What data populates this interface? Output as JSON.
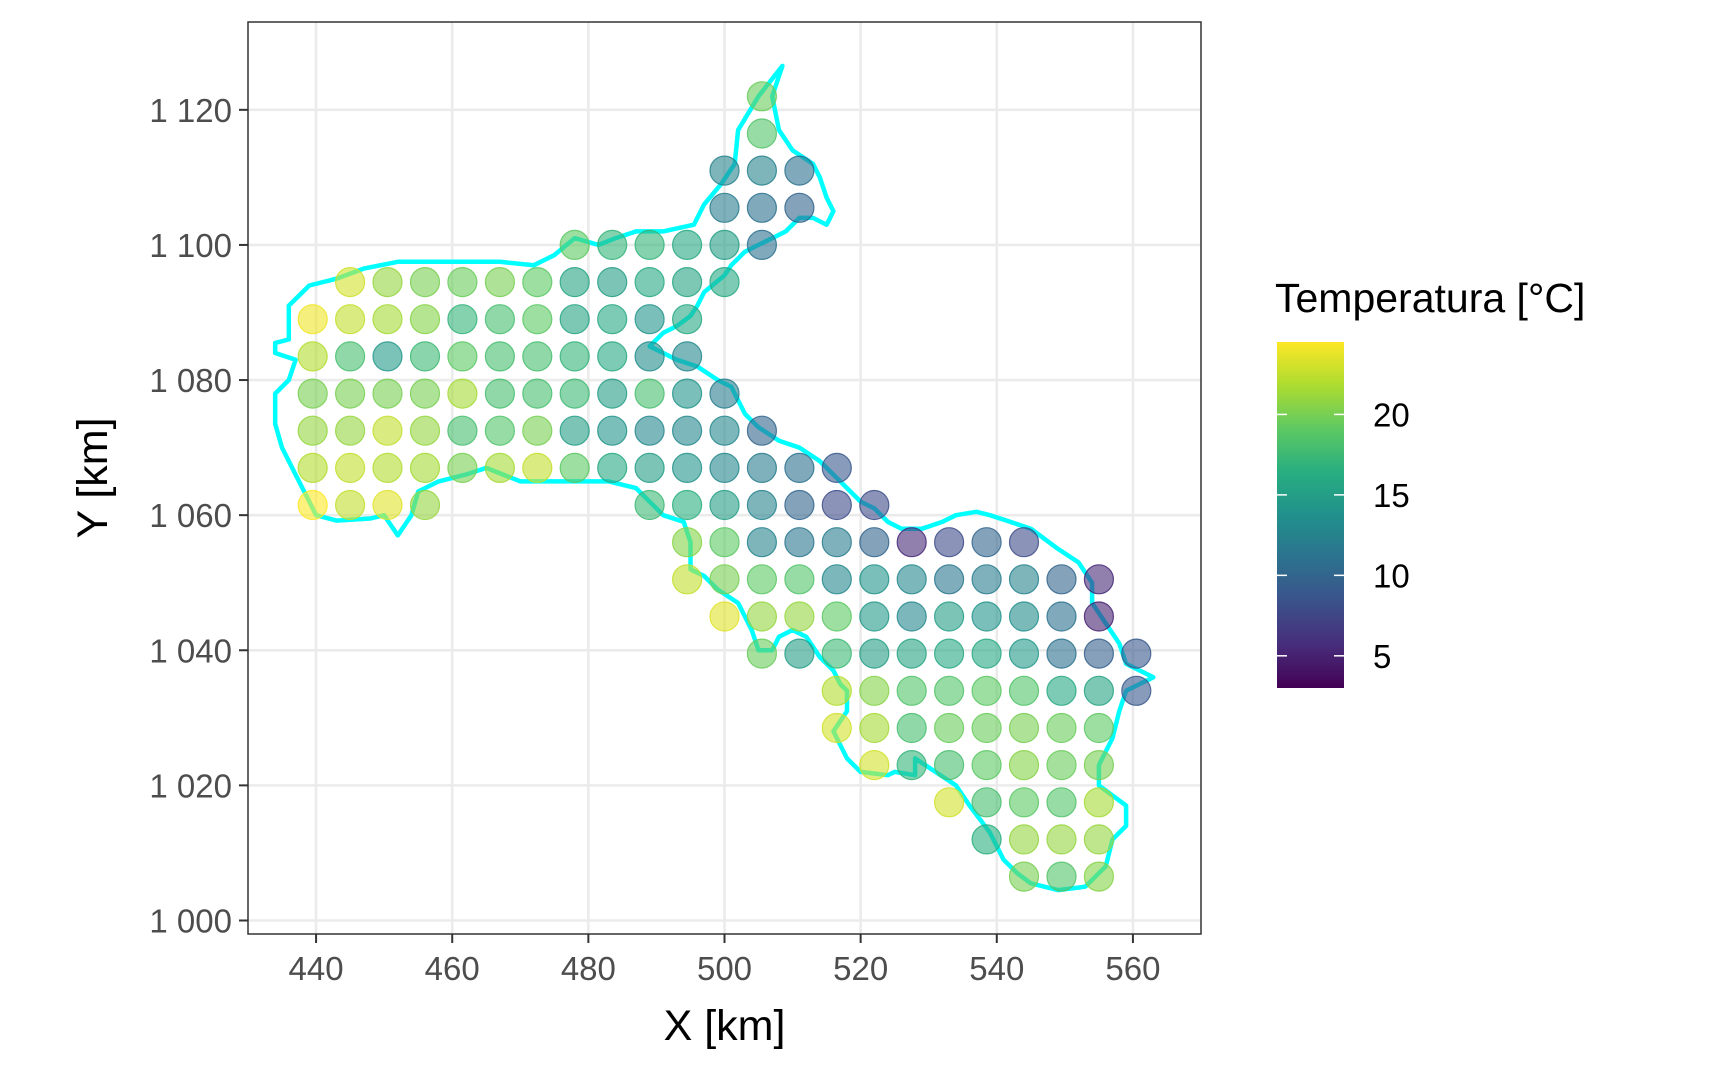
{
  "chart_data": {
    "type": "scatter",
    "xlabel": "X [km]",
    "ylabel": "Y [km]",
    "xlim": [
      430,
      570
    ],
    "ylim": [
      998,
      1133
    ],
    "x_ticks": [
      440,
      460,
      480,
      500,
      520,
      540,
      560
    ],
    "y_ticks": [
      1000,
      1020,
      1040,
      1060,
      1080,
      1100,
      1120
    ],
    "x_tick_labels": [
      "440",
      "460",
      "480",
      "500",
      "520",
      "540",
      "560"
    ],
    "y_tick_labels": [
      "1 000",
      "1 020",
      "1 040",
      "1 060",
      "1 080",
      "1 100",
      "1 120"
    ],
    "grid": true,
    "legend": {
      "title": "Temperatura [°C]",
      "placement": "right",
      "range": [
        3,
        24.5
      ],
      "ticks": [
        5,
        10,
        15,
        20
      ],
      "tick_labels": [
        "5",
        "10",
        "15",
        "20"
      ],
      "palette": "viridis"
    },
    "outline_color": "#00FFFF",
    "point_opacity": 0.6,
    "grid_x": [
      439.5,
      445,
      450.5,
      456,
      461.5,
      467,
      472.5,
      478,
      483.5,
      489,
      494.5,
      500,
      505.5,
      511,
      516.5,
      522,
      527.5,
      533,
      538.5,
      544,
      549.5,
      555,
      560.5
    ],
    "grid_y": [
      1122,
      1116.5,
      1111,
      1105.5,
      1100,
      1094.5,
      1089,
      1083.5,
      1078,
      1072.5,
      1067,
      1061.5,
      1056,
      1050.5,
      1045,
      1039.5,
      1034,
      1028.5,
      1023,
      1017.5,
      1012,
      1006.5
    ],
    "points": [
      {
        "i": 12,
        "j": 0,
        "t": 19.5
      },
      {
        "i": 12,
        "j": 1,
        "t": 18.5
      },
      {
        "i": 11,
        "j": 2,
        "t": 12.5
      },
      {
        "i": 12,
        "j": 2,
        "t": 12.5
      },
      {
        "i": 13,
        "j": 2,
        "t": 11
      },
      {
        "i": 11,
        "j": 3,
        "t": 12
      },
      {
        "i": 12,
        "j": 3,
        "t": 11
      },
      {
        "i": 13,
        "j": 3,
        "t": 10
      },
      {
        "i": 7,
        "j": 4,
        "t": 19
      },
      {
        "i": 8,
        "j": 4,
        "t": 17
      },
      {
        "i": 9,
        "j": 4,
        "t": 17
      },
      {
        "i": 10,
        "j": 4,
        "t": 16
      },
      {
        "i": 11,
        "j": 4,
        "t": 15
      },
      {
        "i": 12,
        "j": 4,
        "t": 11
      },
      {
        "i": 1,
        "j": 5,
        "t": 23
      },
      {
        "i": 2,
        "j": 5,
        "t": 21
      },
      {
        "i": 3,
        "j": 5,
        "t": 20
      },
      {
        "i": 4,
        "j": 5,
        "t": 19.5
      },
      {
        "i": 5,
        "j": 5,
        "t": 20
      },
      {
        "i": 6,
        "j": 5,
        "t": 19
      },
      {
        "i": 7,
        "j": 5,
        "t": 15.5
      },
      {
        "i": 8,
        "j": 5,
        "t": 15
      },
      {
        "i": 9,
        "j": 5,
        "t": 16
      },
      {
        "i": 10,
        "j": 5,
        "t": 15.5
      },
      {
        "i": 11,
        "j": 5,
        "t": 16
      },
      {
        "i": 0,
        "j": 6,
        "t": 24
      },
      {
        "i": 1,
        "j": 6,
        "t": 22.5
      },
      {
        "i": 2,
        "j": 6,
        "t": 21.5
      },
      {
        "i": 3,
        "j": 6,
        "t": 20.5
      },
      {
        "i": 4,
        "j": 6,
        "t": 17
      },
      {
        "i": 5,
        "j": 6,
        "t": 18
      },
      {
        "i": 6,
        "j": 6,
        "t": 19
      },
      {
        "i": 7,
        "j": 6,
        "t": 15.5
      },
      {
        "i": 8,
        "j": 6,
        "t": 16
      },
      {
        "i": 9,
        "j": 6,
        "t": 14
      },
      {
        "i": 10,
        "j": 6,
        "t": 16
      },
      {
        "i": 0,
        "j": 7,
        "t": 22
      },
      {
        "i": 1,
        "j": 7,
        "t": 18
      },
      {
        "i": 2,
        "j": 7,
        "t": 14.5
      },
      {
        "i": 3,
        "j": 7,
        "t": 17.5
      },
      {
        "i": 4,
        "j": 7,
        "t": 19
      },
      {
        "i": 5,
        "j": 7,
        "t": 18
      },
      {
        "i": 6,
        "j": 7,
        "t": 18
      },
      {
        "i": 7,
        "j": 7,
        "t": 17
      },
      {
        "i": 8,
        "j": 7,
        "t": 16
      },
      {
        "i": 9,
        "j": 7,
        "t": 13.5
      },
      {
        "i": 10,
        "j": 7,
        "t": 13
      },
      {
        "i": 0,
        "j": 8,
        "t": 20
      },
      {
        "i": 1,
        "j": 8,
        "t": 20
      },
      {
        "i": 2,
        "j": 8,
        "t": 20
      },
      {
        "i": 3,
        "j": 8,
        "t": 20
      },
      {
        "i": 4,
        "j": 8,
        "t": 21.5
      },
      {
        "i": 5,
        "j": 8,
        "t": 18
      },
      {
        "i": 6,
        "j": 8,
        "t": 18
      },
      {
        "i": 7,
        "j": 8,
        "t": 17.5
      },
      {
        "i": 8,
        "j": 8,
        "t": 15
      },
      {
        "i": 9,
        "j": 8,
        "t": 18
      },
      {
        "i": 10,
        "j": 8,
        "t": 14
      },
      {
        "i": 11,
        "j": 8,
        "t": 12
      },
      {
        "i": 0,
        "j": 9,
        "t": 21
      },
      {
        "i": 1,
        "j": 9,
        "t": 21
      },
      {
        "i": 2,
        "j": 9,
        "t": 22.5
      },
      {
        "i": 3,
        "j": 9,
        "t": 21
      },
      {
        "i": 4,
        "j": 9,
        "t": 18
      },
      {
        "i": 5,
        "j": 9,
        "t": 18.5
      },
      {
        "i": 6,
        "j": 9,
        "t": 20
      },
      {
        "i": 7,
        "j": 9,
        "t": 15
      },
      {
        "i": 8,
        "j": 9,
        "t": 14
      },
      {
        "i": 9,
        "j": 9,
        "t": 13
      },
      {
        "i": 10,
        "j": 9,
        "t": 13
      },
      {
        "i": 11,
        "j": 9,
        "t": 13
      },
      {
        "i": 12,
        "j": 9,
        "t": 10
      },
      {
        "i": 0,
        "j": 10,
        "t": 22
      },
      {
        "i": 1,
        "j": 10,
        "t": 22.5
      },
      {
        "i": 2,
        "j": 10,
        "t": 22
      },
      {
        "i": 3,
        "j": 10,
        "t": 21.5
      },
      {
        "i": 4,
        "j": 10,
        "t": 20
      },
      {
        "i": 5,
        "j": 10,
        "t": 21.5
      },
      {
        "i": 6,
        "j": 10,
        "t": 22.5
      },
      {
        "i": 7,
        "j": 10,
        "t": 19
      },
      {
        "i": 8,
        "j": 10,
        "t": 16
      },
      {
        "i": 9,
        "j": 10,
        "t": 15
      },
      {
        "i": 10,
        "j": 10,
        "t": 14
      },
      {
        "i": 11,
        "j": 10,
        "t": 13
      },
      {
        "i": 12,
        "j": 10,
        "t": 12
      },
      {
        "i": 13,
        "j": 10,
        "t": 11
      },
      {
        "i": 14,
        "j": 10,
        "t": 9
      },
      {
        "i": 0,
        "j": 11,
        "t": 24.5
      },
      {
        "i": 1,
        "j": 11,
        "t": 22.5
      },
      {
        "i": 2,
        "j": 11,
        "t": 23.5
      },
      {
        "i": 3,
        "j": 11,
        "t": 21
      },
      {
        "i": 9,
        "j": 11,
        "t": 17.5
      },
      {
        "i": 10,
        "j": 11,
        "t": 16.5
      },
      {
        "i": 11,
        "j": 11,
        "t": 15
      },
      {
        "i": 12,
        "j": 11,
        "t": 12.5
      },
      {
        "i": 13,
        "j": 11,
        "t": 10
      },
      {
        "i": 14,
        "j": 11,
        "t": 8
      },
      {
        "i": 15,
        "j": 11,
        "t": 8
      },
      {
        "i": 10,
        "j": 12,
        "t": 20.5
      },
      {
        "i": 11,
        "j": 12,
        "t": 19
      },
      {
        "i": 12,
        "j": 12,
        "t": 12.5
      },
      {
        "i": 13,
        "j": 12,
        "t": 11.5
      },
      {
        "i": 14,
        "j": 12,
        "t": 12
      },
      {
        "i": 15,
        "j": 12,
        "t": 10
      },
      {
        "i": 16,
        "j": 12,
        "t": 5.5
      },
      {
        "i": 17,
        "j": 12,
        "t": 8
      },
      {
        "i": 18,
        "j": 12,
        "t": 10
      },
      {
        "i": 19,
        "j": 12,
        "t": 8
      },
      {
        "i": 10,
        "j": 13,
        "t": 22.5
      },
      {
        "i": 11,
        "j": 13,
        "t": 20
      },
      {
        "i": 12,
        "j": 13,
        "t": 19
      },
      {
        "i": 13,
        "j": 13,
        "t": 18.5
      },
      {
        "i": 14,
        "j": 13,
        "t": 13
      },
      {
        "i": 15,
        "j": 13,
        "t": 14
      },
      {
        "i": 16,
        "j": 13,
        "t": 13
      },
      {
        "i": 17,
        "j": 13,
        "t": 11.5
      },
      {
        "i": 18,
        "j": 13,
        "t": 12
      },
      {
        "i": 19,
        "j": 13,
        "t": 12.5
      },
      {
        "i": 20,
        "j": 13,
        "t": 10
      },
      {
        "i": 21,
        "j": 13,
        "t": 5.5
      },
      {
        "i": 11,
        "j": 14,
        "t": 23.5
      },
      {
        "i": 12,
        "j": 14,
        "t": 21
      },
      {
        "i": 13,
        "j": 14,
        "t": 21
      },
      {
        "i": 14,
        "j": 14,
        "t": 19
      },
      {
        "i": 15,
        "j": 14,
        "t": 14.5
      },
      {
        "i": 16,
        "j": 14,
        "t": 13
      },
      {
        "i": 17,
        "j": 14,
        "t": 15
      },
      {
        "i": 18,
        "j": 14,
        "t": 14
      },
      {
        "i": 19,
        "j": 14,
        "t": 13.5
      },
      {
        "i": 20,
        "j": 14,
        "t": 11
      },
      {
        "i": 21,
        "j": 14,
        "t": 5
      },
      {
        "i": 12,
        "j": 15,
        "t": 19.5
      },
      {
        "i": 13,
        "j": 15,
        "t": 15
      },
      {
        "i": 14,
        "j": 15,
        "t": 17.5
      },
      {
        "i": 15,
        "j": 15,
        "t": 15
      },
      {
        "i": 16,
        "j": 15,
        "t": 15.5
      },
      {
        "i": 17,
        "j": 15,
        "t": 16
      },
      {
        "i": 18,
        "j": 15,
        "t": 16
      },
      {
        "i": 19,
        "j": 15,
        "t": 14.5
      },
      {
        "i": 20,
        "j": 15,
        "t": 11
      },
      {
        "i": 21,
        "j": 15,
        "t": 9.5
      },
      {
        "i": 22,
        "j": 15,
        "t": 9
      },
      {
        "i": 14,
        "j": 16,
        "t": 22
      },
      {
        "i": 15,
        "j": 16,
        "t": 20.5
      },
      {
        "i": 16,
        "j": 16,
        "t": 18.5
      },
      {
        "i": 17,
        "j": 16,
        "t": 18.5
      },
      {
        "i": 18,
        "j": 16,
        "t": 19
      },
      {
        "i": 19,
        "j": 16,
        "t": 18.5
      },
      {
        "i": 20,
        "j": 16,
        "t": 16
      },
      {
        "i": 21,
        "j": 16,
        "t": 15.5
      },
      {
        "i": 22,
        "j": 16,
        "t": 9
      },
      {
        "i": 14,
        "j": 17,
        "t": 23
      },
      {
        "i": 15,
        "j": 17,
        "t": 21.5
      },
      {
        "i": 16,
        "j": 17,
        "t": 18
      },
      {
        "i": 17,
        "j": 17,
        "t": 19.5
      },
      {
        "i": 18,
        "j": 17,
        "t": 19.5
      },
      {
        "i": 19,
        "j": 17,
        "t": 20
      },
      {
        "i": 20,
        "j": 17,
        "t": 19.5
      },
      {
        "i": 21,
        "j": 17,
        "t": 19
      },
      {
        "i": 15,
        "j": 18,
        "t": 23
      },
      {
        "i": 16,
        "j": 18,
        "t": 17
      },
      {
        "i": 17,
        "j": 18,
        "t": 18
      },
      {
        "i": 18,
        "j": 18,
        "t": 19
      },
      {
        "i": 19,
        "j": 18,
        "t": 20.5
      },
      {
        "i": 20,
        "j": 18,
        "t": 19.5
      },
      {
        "i": 21,
        "j": 18,
        "t": 20
      },
      {
        "i": 17,
        "j": 19,
        "t": 23
      },
      {
        "i": 18,
        "j": 19,
        "t": 18
      },
      {
        "i": 19,
        "j": 19,
        "t": 19
      },
      {
        "i": 20,
        "j": 19,
        "t": 18.5
      },
      {
        "i": 21,
        "j": 19,
        "t": 21.5
      },
      {
        "i": 18,
        "j": 20,
        "t": 16.5
      },
      {
        "i": 19,
        "j": 20,
        "t": 21
      },
      {
        "i": 20,
        "j": 20,
        "t": 21
      },
      {
        "i": 21,
        "j": 20,
        "t": 21
      },
      {
        "i": 19,
        "j": 21,
        "t": 20
      },
      {
        "i": 20,
        "j": 21,
        "t": 18.5
      },
      {
        "i": 21,
        "j": 21,
        "t": 20.5
      }
    ],
    "outline": [
      [
        508.5,
        1126.5
      ],
      [
        505,
        1122
      ],
      [
        502,
        1117
      ],
      [
        501.5,
        1112
      ],
      [
        499.5,
        1109
      ],
      [
        497,
        1106
      ],
      [
        495.5,
        1103
      ],
      [
        491,
        1102
      ],
      [
        487,
        1102
      ],
      [
        484,
        1101
      ],
      [
        481.5,
        1100
      ],
      [
        478,
        1101
      ],
      [
        475,
        1098.5
      ],
      [
        472,
        1097
      ],
      [
        467,
        1097.5
      ],
      [
        462,
        1097.5
      ],
      [
        457,
        1097.5
      ],
      [
        452,
        1097.5
      ],
      [
        447,
        1096.5
      ],
      [
        443,
        1095
      ],
      [
        439,
        1094
      ],
      [
        436,
        1091
      ],
      [
        436,
        1086
      ],
      [
        434,
        1085.5
      ],
      [
        434,
        1084
      ],
      [
        437,
        1083
      ],
      [
        436,
        1080
      ],
      [
        434,
        1078
      ],
      [
        434,
        1073.5
      ],
      [
        435,
        1070
      ],
      [
        437,
        1066
      ],
      [
        439,
        1062
      ],
      [
        440,
        1060
      ],
      [
        443,
        1059.2
      ],
      [
        448,
        1059.5
      ],
      [
        450,
        1060
      ],
      [
        452,
        1057
      ],
      [
        454,
        1060
      ],
      [
        455,
        1063.5
      ],
      [
        458,
        1065
      ],
      [
        462,
        1066
      ],
      [
        465,
        1067
      ],
      [
        470,
        1065
      ],
      [
        474,
        1065
      ],
      [
        478,
        1065
      ],
      [
        483,
        1065
      ],
      [
        487,
        1064
      ],
      [
        489,
        1062
      ],
      [
        491,
        1060
      ],
      [
        494,
        1059
      ],
      [
        495,
        1056
      ],
      [
        495,
        1052
      ],
      [
        497,
        1051
      ],
      [
        499,
        1049
      ],
      [
        502,
        1047
      ],
      [
        504,
        1043
      ],
      [
        505,
        1040
      ],
      [
        507,
        1040
      ],
      [
        508,
        1042
      ],
      [
        510,
        1043
      ],
      [
        512,
        1042
      ],
      [
        514,
        1039
      ],
      [
        516,
        1037
      ],
      [
        517,
        1035
      ],
      [
        518,
        1034
      ],
      [
        518,
        1031
      ],
      [
        516,
        1028
      ],
      [
        518,
        1024
      ],
      [
        520,
        1022
      ],
      [
        524,
        1021.5
      ],
      [
        525,
        1022
      ],
      [
        528,
        1021.5
      ],
      [
        528,
        1024
      ],
      [
        531,
        1022
      ],
      [
        534,
        1020
      ],
      [
        536,
        1017
      ],
      [
        539,
        1013
      ],
      [
        541,
        1009
      ],
      [
        543,
        1007
      ],
      [
        545,
        1005.5
      ],
      [
        549,
        1004.5
      ],
      [
        553,
        1005
      ],
      [
        556,
        1008
      ],
      [
        557,
        1012
      ],
      [
        559,
        1014
      ],
      [
        559,
        1017
      ],
      [
        555,
        1020
      ],
      [
        555,
        1023
      ],
      [
        557,
        1027
      ],
      [
        558,
        1031
      ],
      [
        559,
        1034
      ],
      [
        561,
        1035
      ],
      [
        563,
        1036
      ],
      [
        561,
        1037
      ],
      [
        559,
        1038
      ],
      [
        558,
        1041
      ],
      [
        556,
        1044
      ],
      [
        554,
        1047
      ],
      [
        554,
        1050
      ],
      [
        552,
        1053
      ],
      [
        549,
        1055
      ],
      [
        545,
        1058
      ],
      [
        542,
        1059
      ],
      [
        539,
        1060
      ],
      [
        537,
        1060.5
      ],
      [
        534,
        1060
      ],
      [
        532,
        1059
      ],
      [
        529,
        1058
      ],
      [
        526,
        1058
      ],
      [
        524,
        1059
      ],
      [
        522,
        1061
      ],
      [
        520,
        1062
      ],
      [
        518,
        1064
      ],
      [
        516,
        1066
      ],
      [
        514,
        1068
      ],
      [
        511,
        1070
      ],
      [
        508,
        1071
      ],
      [
        505,
        1073
      ],
      [
        503,
        1075
      ],
      [
        501,
        1079
      ],
      [
        499,
        1080
      ],
      [
        496,
        1082
      ],
      [
        493,
        1083
      ],
      [
        491,
        1084
      ],
      [
        489,
        1085
      ],
      [
        491,
        1087
      ],
      [
        493,
        1088
      ],
      [
        495,
        1089.5
      ],
      [
        496,
        1091
      ],
      [
        497,
        1093
      ],
      [
        500,
        1095.5
      ],
      [
        501,
        1097
      ],
      [
        503,
        1099
      ],
      [
        505,
        1100
      ],
      [
        507,
        1101
      ],
      [
        509,
        1102
      ],
      [
        511,
        1104
      ],
      [
        513,
        1104
      ],
      [
        515,
        1103
      ],
      [
        516,
        1105
      ],
      [
        515,
        1107
      ],
      [
        514,
        1110
      ],
      [
        513,
        1112
      ],
      [
        510,
        1114
      ],
      [
        508,
        1117
      ],
      [
        507,
        1122
      ],
      [
        508.5,
        1126.5
      ]
    ]
  }
}
